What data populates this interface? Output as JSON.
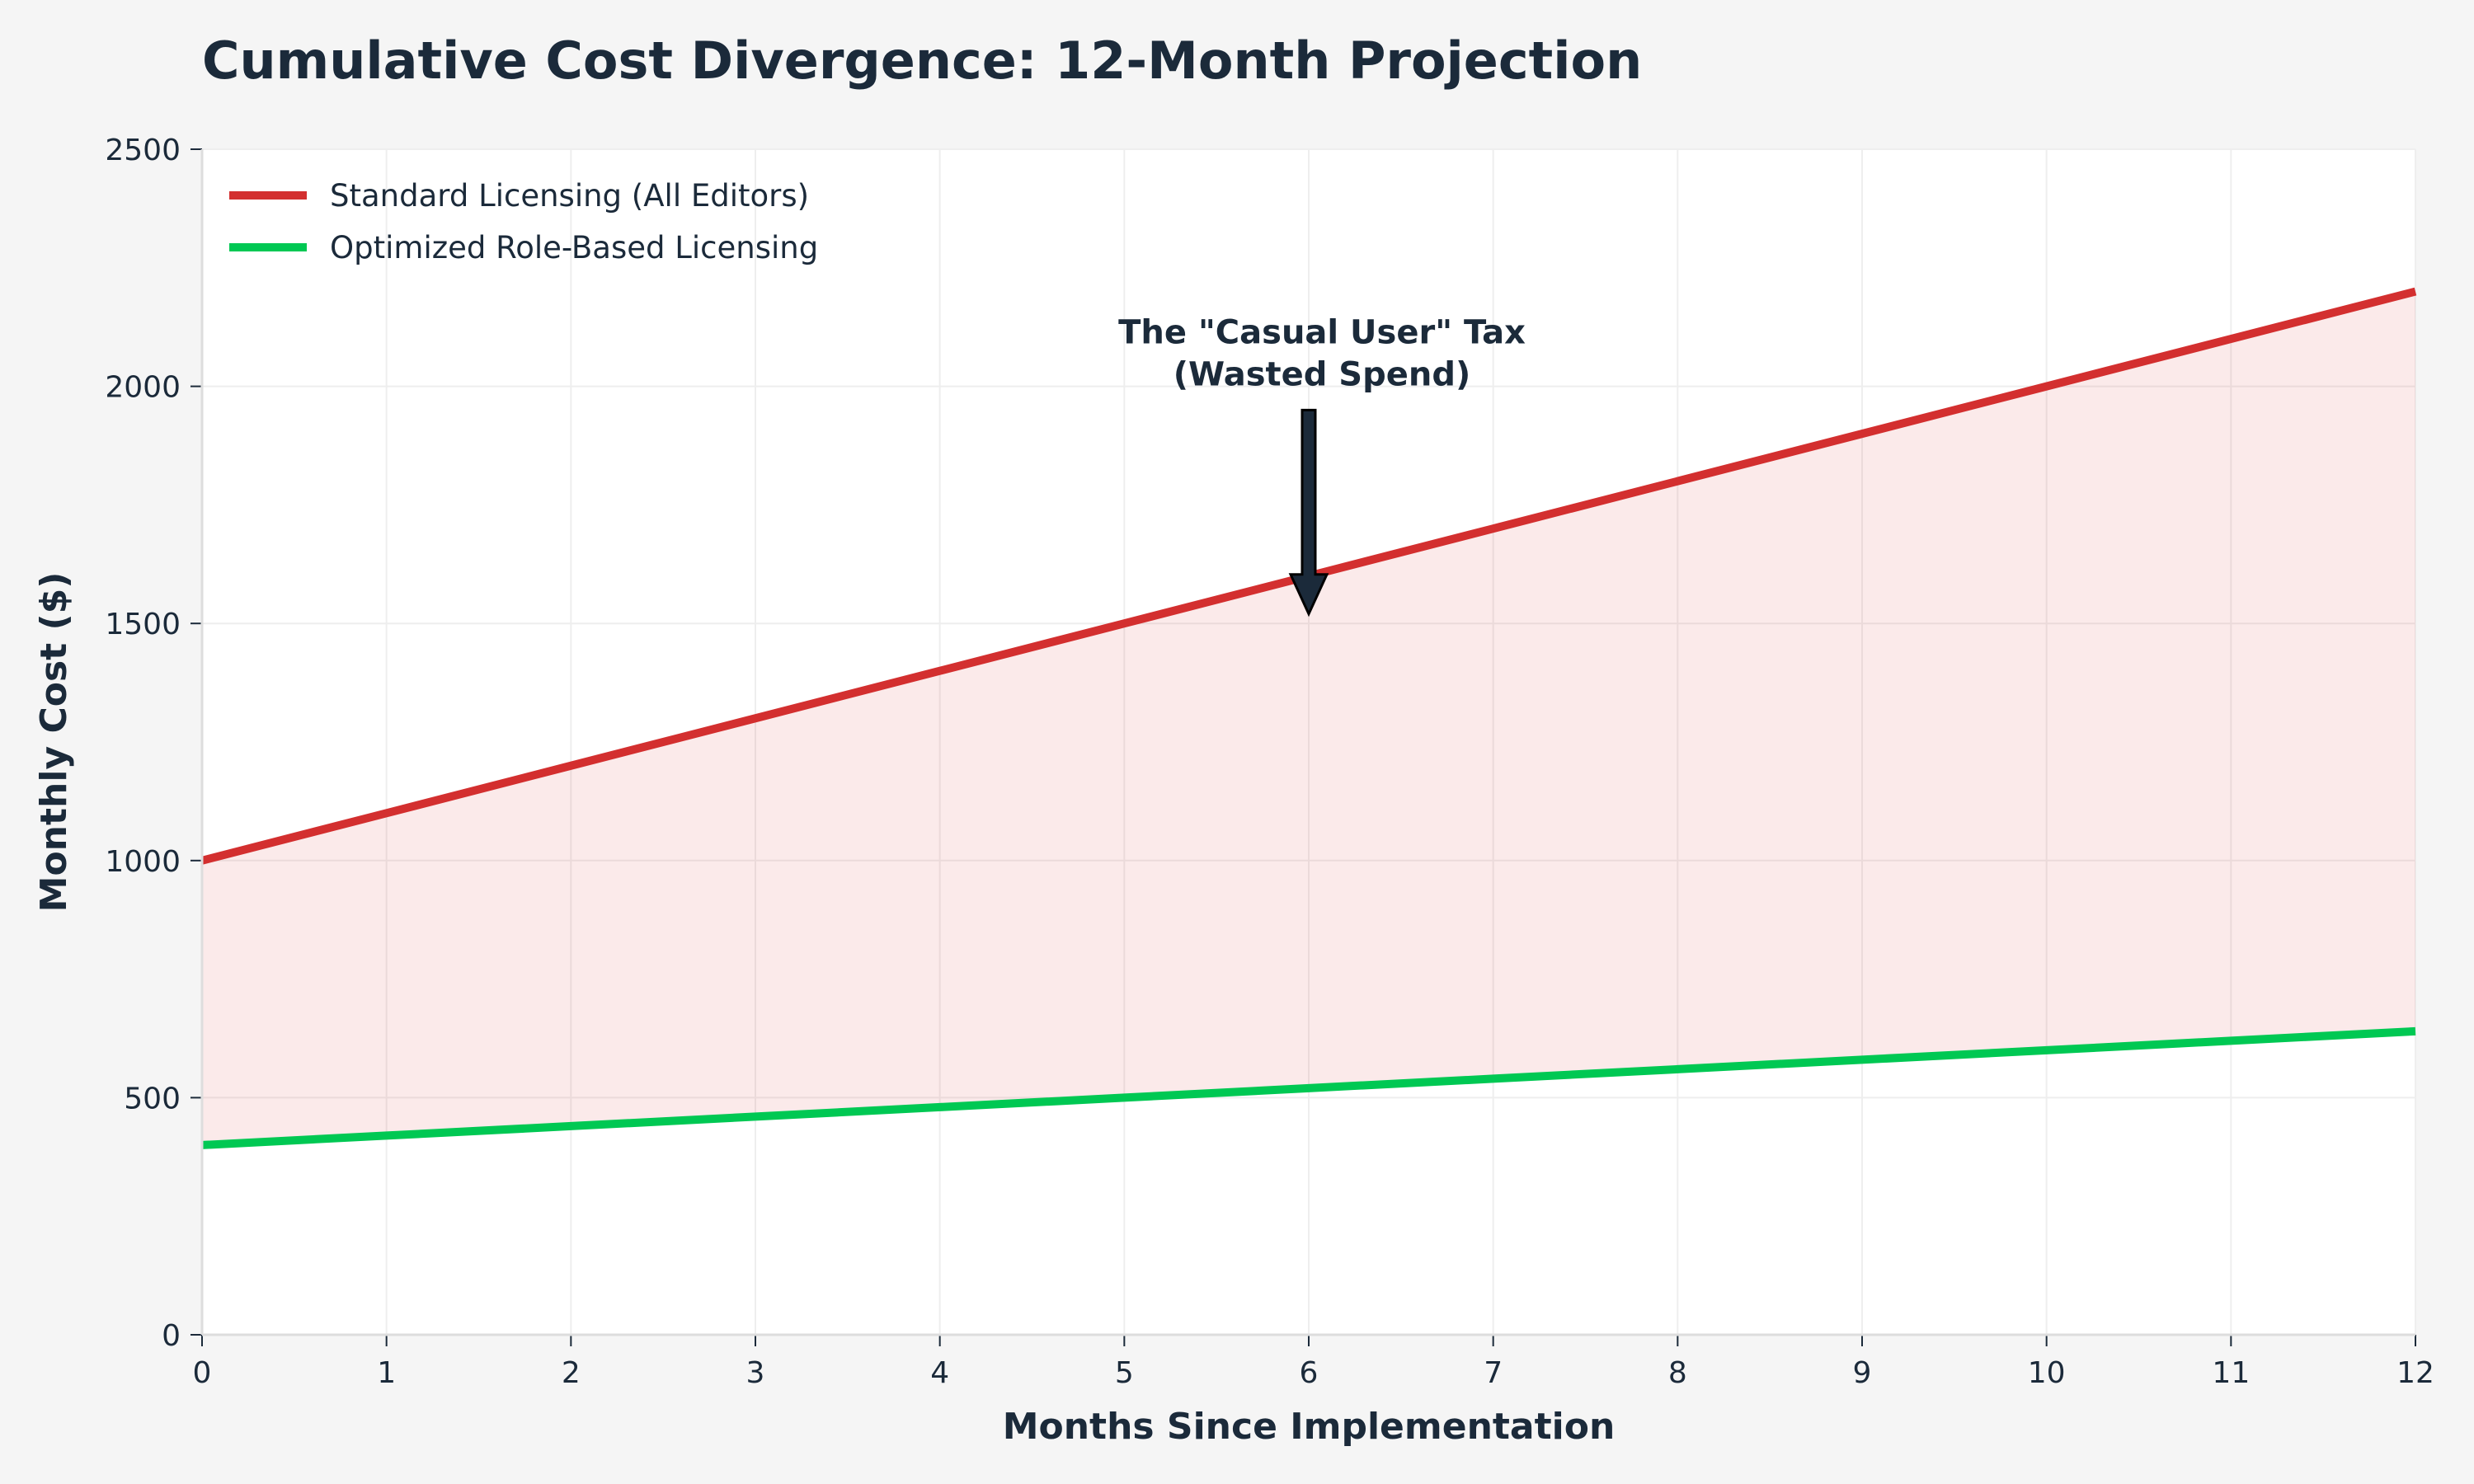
{
  "chart_data": {
    "type": "line",
    "title": "Cumulative Cost Divergence: 12-Month Projection",
    "xlabel": "Months Since Implementation",
    "ylabel": "Monthly Cost ($)",
    "xlim": [
      0,
      12
    ],
    "ylim": [
      0,
      2500
    ],
    "xticks": [
      0,
      1,
      2,
      3,
      4,
      5,
      6,
      7,
      8,
      9,
      10,
      11,
      12
    ],
    "yticks": [
      0,
      500,
      1000,
      1500,
      2000,
      2500
    ],
    "grid": true,
    "legend_position": "top-left",
    "x": [
      0,
      1,
      2,
      3,
      4,
      5,
      6,
      7,
      8,
      9,
      10,
      11,
      12
    ],
    "series": [
      {
        "name": "Standard Licensing (All Editors)",
        "color": "#d32f2f",
        "values": [
          1000,
          1100,
          1200,
          1300,
          1400,
          1500,
          1600,
          1700,
          1800,
          1900,
          2000,
          2100,
          2200
        ]
      },
      {
        "name": "Optimized Role-Based Licensing",
        "color": "#00c853",
        "values": [
          400,
          420,
          440,
          460,
          480,
          500,
          520,
          540,
          560,
          580,
          600,
          620,
          640
        ]
      }
    ],
    "fill_between": {
      "color": "#d32f2f",
      "opacity": 0.1
    },
    "annotation": {
      "lines": [
        "The \"Casual User\" Tax",
        "(Wasted Spend)"
      ],
      "text_at": [
        6,
        2000
      ],
      "arrow_from": [
        6,
        1950
      ],
      "arrow_to": [
        6,
        1520
      ]
    }
  }
}
